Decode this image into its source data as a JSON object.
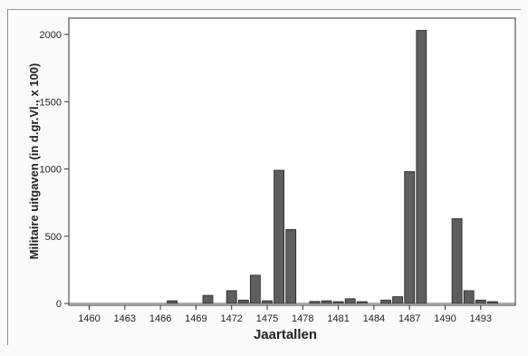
{
  "chart_data": {
    "type": "bar",
    "xlabel": "Jaartallen",
    "ylabel": "Militaire uitgaven (in d.gr.Vl., x 100)",
    "ylim": [
      0,
      2100
    ],
    "yticks": [
      0,
      500,
      1000,
      1500,
      2000
    ],
    "x_tick_labels": [
      "1460",
      "1463",
      "1466",
      "1469",
      "1472",
      "1475",
      "1478",
      "1481",
      "1484",
      "1487",
      "1490",
      "1493"
    ],
    "x_tick_years": [
      1460,
      1463,
      1466,
      1469,
      1472,
      1475,
      1478,
      1481,
      1484,
      1487,
      1490,
      1493
    ],
    "bar_color": "#5e5e5e",
    "bars": [
      {
        "year": 1467,
        "value": 20
      },
      {
        "year": 1470,
        "value": 60
      },
      {
        "year": 1472,
        "value": 95
      },
      {
        "year": 1473,
        "value": 25
      },
      {
        "year": 1474,
        "value": 210
      },
      {
        "year": 1475,
        "value": 20
      },
      {
        "year": 1476,
        "value": 990
      },
      {
        "year": 1477,
        "value": 550
      },
      {
        "year": 1479,
        "value": 15
      },
      {
        "year": 1480,
        "value": 20
      },
      {
        "year": 1481,
        "value": 10
      },
      {
        "year": 1482,
        "value": 35
      },
      {
        "year": 1483,
        "value": 10
      },
      {
        "year": 1485,
        "value": 25
      },
      {
        "year": 1486,
        "value": 50
      },
      {
        "year": 1487,
        "value": 980
      },
      {
        "year": 1488,
        "value": 2030
      },
      {
        "year": 1491,
        "value": 630
      },
      {
        "year": 1492,
        "value": 95
      },
      {
        "year": 1493,
        "value": 25
      },
      {
        "year": 1494,
        "value": 8
      }
    ]
  }
}
